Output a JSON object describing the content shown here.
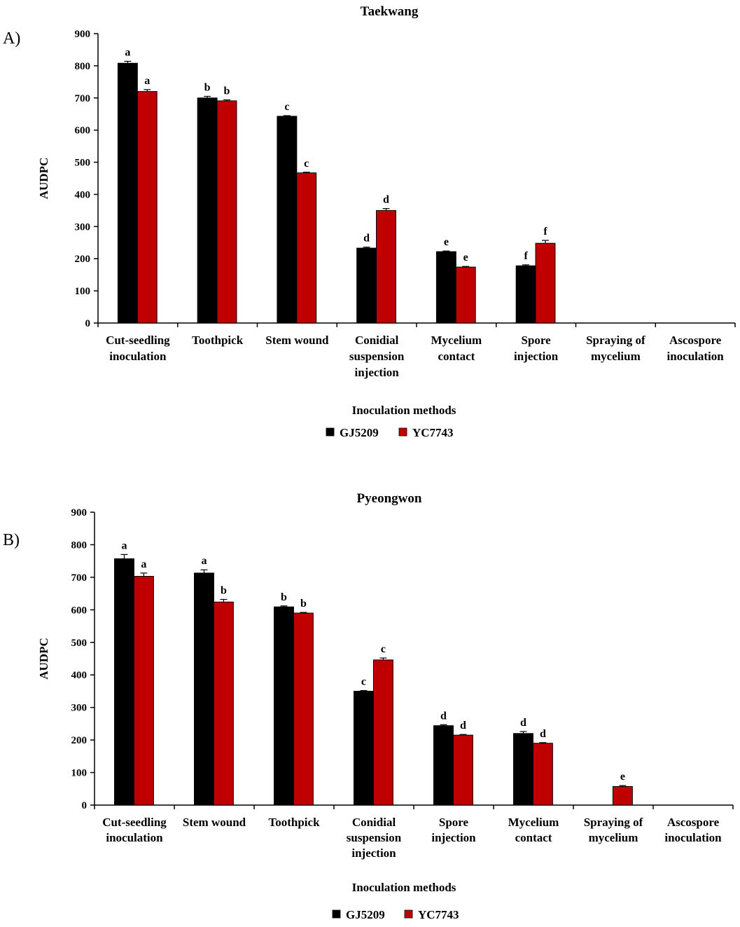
{
  "series_colors": [
    "#000000",
    "#c00000"
  ],
  "chart_data": [
    {
      "type": "bar",
      "panel": "A)",
      "title": "Taekwang",
      "xlabel": "Inoculation methods",
      "ylabel": "AUDPC",
      "ylim": [
        0,
        900
      ],
      "yticks": [
        0,
        100,
        200,
        300,
        400,
        500,
        600,
        700,
        800,
        900
      ],
      "categories": [
        [
          "Cut-seedling",
          "inoculation"
        ],
        [
          "Toothpick"
        ],
        [
          "Stem wound"
        ],
        [
          "Conidial",
          "suspension",
          "injection"
        ],
        [
          "Mycelium",
          "contact"
        ],
        [
          "Spore",
          "injection"
        ],
        [
          "Spraying of",
          "mycelium"
        ],
        [
          "Ascospore",
          "inoculation"
        ]
      ],
      "series": [
        {
          "name": "GJ5209",
          "values": [
            808,
            700,
            643,
            233,
            222,
            178,
            0,
            0
          ],
          "errors": [
            6,
            5,
            2,
            3,
            2,
            3,
            0,
            0
          ],
          "letters": [
            "a",
            "b",
            "c",
            "d",
            "e",
            "f",
            "",
            ""
          ]
        },
        {
          "name": "YC7743",
          "values": [
            720,
            691,
            467,
            350,
            174,
            248,
            0,
            0
          ],
          "errors": [
            6,
            3,
            2,
            6,
            2,
            9,
            0,
            0
          ],
          "letters": [
            "a",
            "b",
            "c",
            "d",
            "e",
            "f",
            "",
            ""
          ]
        }
      ]
    },
    {
      "type": "bar",
      "panel": "B)",
      "title": "Pyeongwon",
      "xlabel": "Inoculation methods",
      "ylabel": "AUDPC",
      "ylim": [
        0,
        900
      ],
      "yticks": [
        0,
        100,
        200,
        300,
        400,
        500,
        600,
        700,
        800,
        900
      ],
      "categories": [
        [
          "Cut-seedling",
          "inoculation"
        ],
        [
          "Stem wound"
        ],
        [
          "Toothpick"
        ],
        [
          "Conidial",
          "suspension",
          "injection"
        ],
        [
          "Spore",
          "injection"
        ],
        [
          "Mycelium",
          "contact"
        ],
        [
          "Spraying of",
          "mycelium"
        ],
        [
          "Ascospore",
          "inoculation"
        ]
      ],
      "series": [
        {
          "name": "GJ5209",
          "values": [
            757,
            713,
            609,
            350,
            244,
            220,
            0,
            0
          ],
          "errors": [
            13,
            10,
            3,
            2,
            3,
            6,
            0,
            0
          ],
          "letters": [
            "a",
            "a",
            "b",
            "c",
            "d",
            "d",
            "",
            ""
          ]
        },
        {
          "name": "YC7743",
          "values": [
            703,
            624,
            590,
            446,
            215,
            190,
            57,
            0
          ],
          "errors": [
            10,
            8,
            2,
            6,
            2,
            2,
            3,
            0
          ],
          "letters": [
            "a",
            "b",
            "b",
            "c",
            "d",
            "d",
            "e",
            ""
          ]
        }
      ]
    }
  ]
}
